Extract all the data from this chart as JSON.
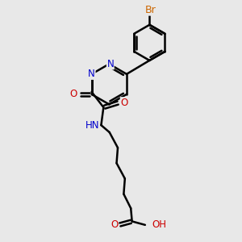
{
  "bg_color": "#e8e8e8",
  "bond_color": "#000000",
  "bond_width": 1.8,
  "atom_colors": {
    "N": "#0000cc",
    "O": "#cc0000",
    "Br": "#cc6600",
    "H": "#000000",
    "C": "#000000"
  },
  "font_size": 8.5,
  "fig_size": [
    3.0,
    3.0
  ],
  "dpi": 100
}
